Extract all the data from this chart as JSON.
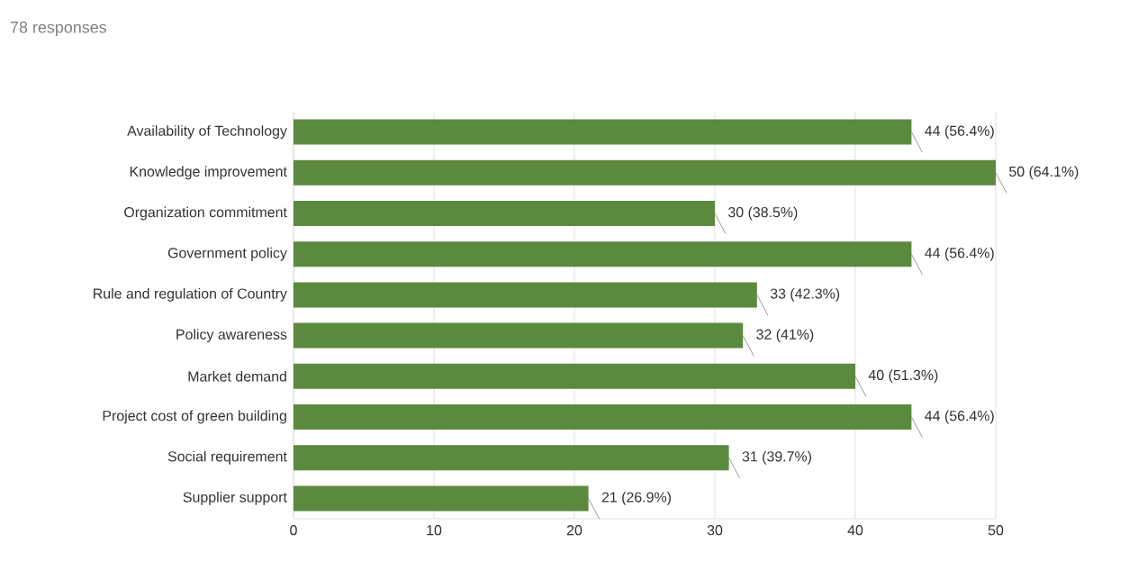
{
  "chart_data": {
    "type": "bar",
    "orientation": "horizontal",
    "title": "78 responses",
    "categories": [
      "Availability of Technology",
      "Knowledge improvement",
      "Organization commitment",
      "Government policy",
      "Rule and regulation of Country",
      "Policy awareness",
      "Market demand",
      "Project cost of green building",
      "Social requirement",
      "Supplier support"
    ],
    "values": [
      44,
      50,
      30,
      44,
      33,
      32,
      40,
      44,
      31,
      21
    ],
    "value_labels": [
      "44 (56.4%)",
      "50 (64.1%)",
      "30 (38.5%)",
      "44 (56.4%)",
      "33 (42.3%)",
      "32 (41%)",
      "40 (51.3%)",
      "44 (56.4%)",
      "31 (39.7%)",
      "21 (26.9%)"
    ],
    "color": "#5b8a3f",
    "xlim": [
      0,
      50
    ],
    "xticks": [
      0,
      10,
      20,
      30,
      40,
      50
    ],
    "grid": "x"
  }
}
